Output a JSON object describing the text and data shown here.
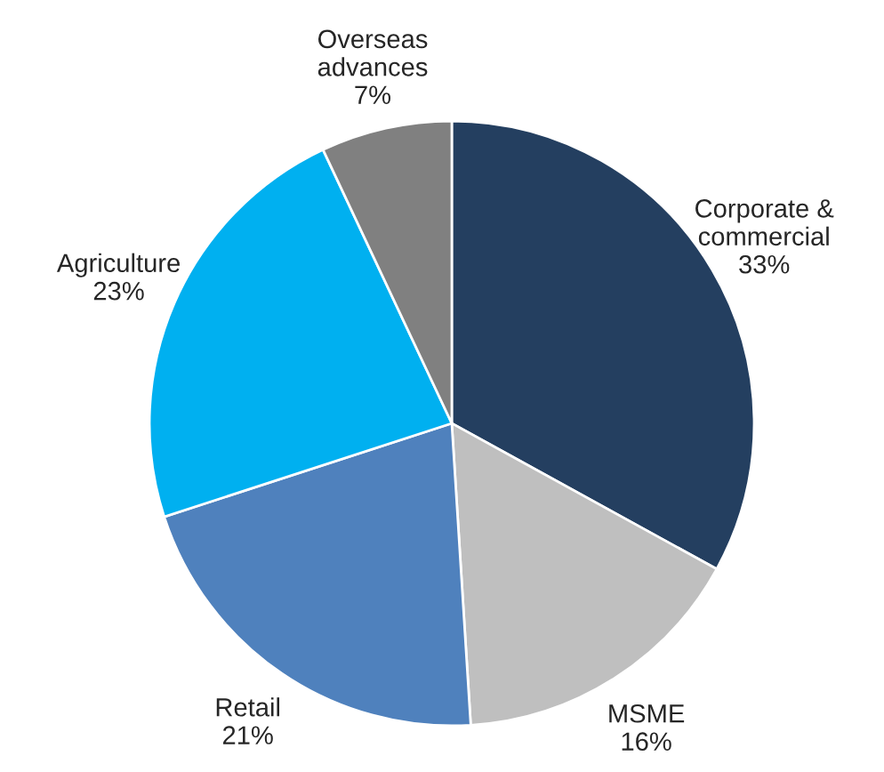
{
  "chart_data": {
    "type": "pie",
    "categories": [
      "Corporate &\ncommercial",
      "MSME",
      "Retail",
      "Agriculture",
      "Overseas\nadvances"
    ],
    "values": [
      33,
      16,
      21,
      23,
      7
    ],
    "value_labels": [
      "33%",
      "16%",
      "21%",
      "23%",
      "7%"
    ],
    "colors": [
      "#243f60",
      "#bfbfbf",
      "#4f81bd",
      "#00b0f0",
      "#808080"
    ],
    "legend": false
  }
}
